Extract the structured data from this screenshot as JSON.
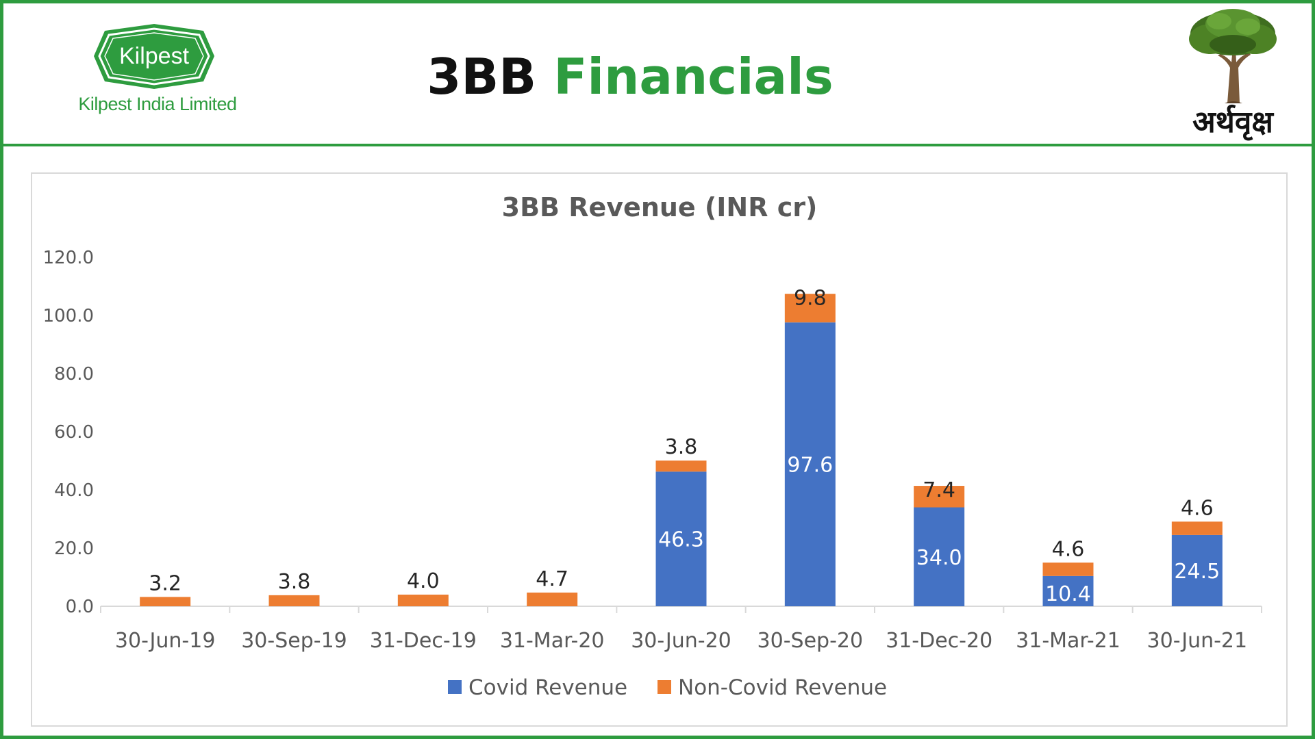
{
  "header": {
    "title_part1": "3BB",
    "title_part2": "Financials",
    "logo_left": {
      "brand_text": "Kilpest",
      "company_name": "Kilpest India Limited"
    },
    "logo_right": {
      "icon": "tree-icon",
      "text": "अर्थवृक्ष"
    }
  },
  "colors": {
    "accent_green": "#2e9c3f",
    "covid": "#4472c4",
    "non_covid": "#ed7d31"
  },
  "chart_data": {
    "type": "bar",
    "stacked": true,
    "title": "3BB Revenue (INR cr)",
    "xlabel": "",
    "ylabel": "",
    "ylim": [
      0,
      120
    ],
    "yticks": [
      "0.0",
      "20.0",
      "40.0",
      "60.0",
      "80.0",
      "100.0",
      "120.0"
    ],
    "grid": false,
    "legend_position": "bottom",
    "categories": [
      "30-Jun-19",
      "30-Sep-19",
      "31-Dec-19",
      "31-Mar-20",
      "30-Jun-20",
      "30-Sep-20",
      "31-Dec-20",
      "31-Mar-21",
      "30-Jun-21"
    ],
    "series": [
      {
        "name": "Covid Revenue",
        "color": "#4472c4",
        "values": [
          0,
          0,
          0,
          0,
          46.3,
          97.6,
          34.0,
          10.4,
          24.5
        ],
        "labels": [
          "",
          "",
          "",
          "",
          "46.3",
          "97.6",
          "34.0",
          "10.4",
          "24.5"
        ]
      },
      {
        "name": "Non-Covid Revenue",
        "color": "#ed7d31",
        "values": [
          3.2,
          3.8,
          4.0,
          4.7,
          3.8,
          9.8,
          7.4,
          4.6,
          4.6
        ],
        "labels": [
          "3.2",
          "3.8",
          "4.0",
          "4.7",
          "3.8",
          "9.8",
          "7.4",
          "4.6",
          "4.6"
        ]
      }
    ]
  }
}
